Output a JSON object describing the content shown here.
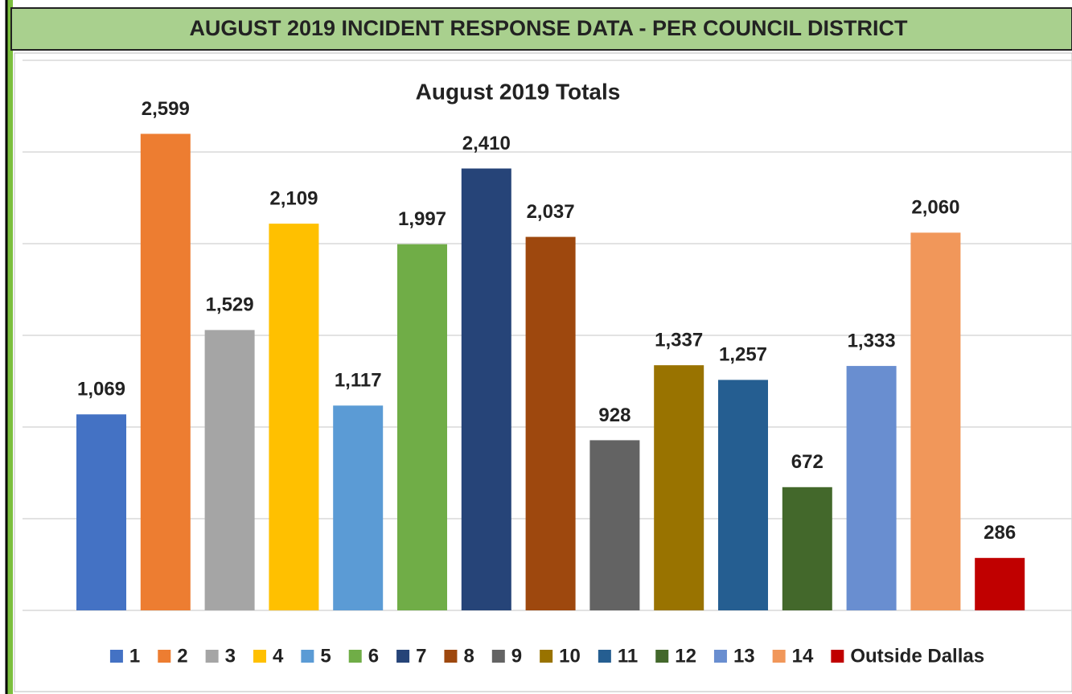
{
  "header": "AUGUST 2019 INCIDENT RESPONSE DATA - PER COUNCIL DISTRICT",
  "chart_data": {
    "type": "bar",
    "title": "August 2019 Totals",
    "categories": [
      "1",
      "2",
      "3",
      "4",
      "5",
      "6",
      "7",
      "8",
      "9",
      "10",
      "11",
      "12",
      "13",
      "14",
      "Outside Dallas"
    ],
    "values": [
      1069,
      2599,
      1529,
      2109,
      1117,
      1997,
      2410,
      2037,
      928,
      1337,
      1257,
      672,
      1333,
      2060,
      286
    ],
    "value_labels": [
      "1,069",
      "2,599",
      "1,529",
      "2,109",
      "1,117",
      "1,997",
      "2,410",
      "2,037",
      "928",
      "1,337",
      "1,257",
      "672",
      "1,333",
      "2,060",
      "286"
    ],
    "colors": [
      "#4472c4",
      "#ed7d31",
      "#a5a5a5",
      "#ffc000",
      "#5b9bd5",
      "#70ad47",
      "#264478",
      "#9e480e",
      "#636363",
      "#997300",
      "#255e91",
      "#43682b",
      "#698ed0",
      "#f1975a",
      "#c00000"
    ],
    "ylim": [
      0,
      3000
    ],
    "yticks": [
      0,
      500,
      1000,
      1500,
      2000,
      2500,
      3000
    ],
    "grid": true,
    "legend": "bottom"
  }
}
